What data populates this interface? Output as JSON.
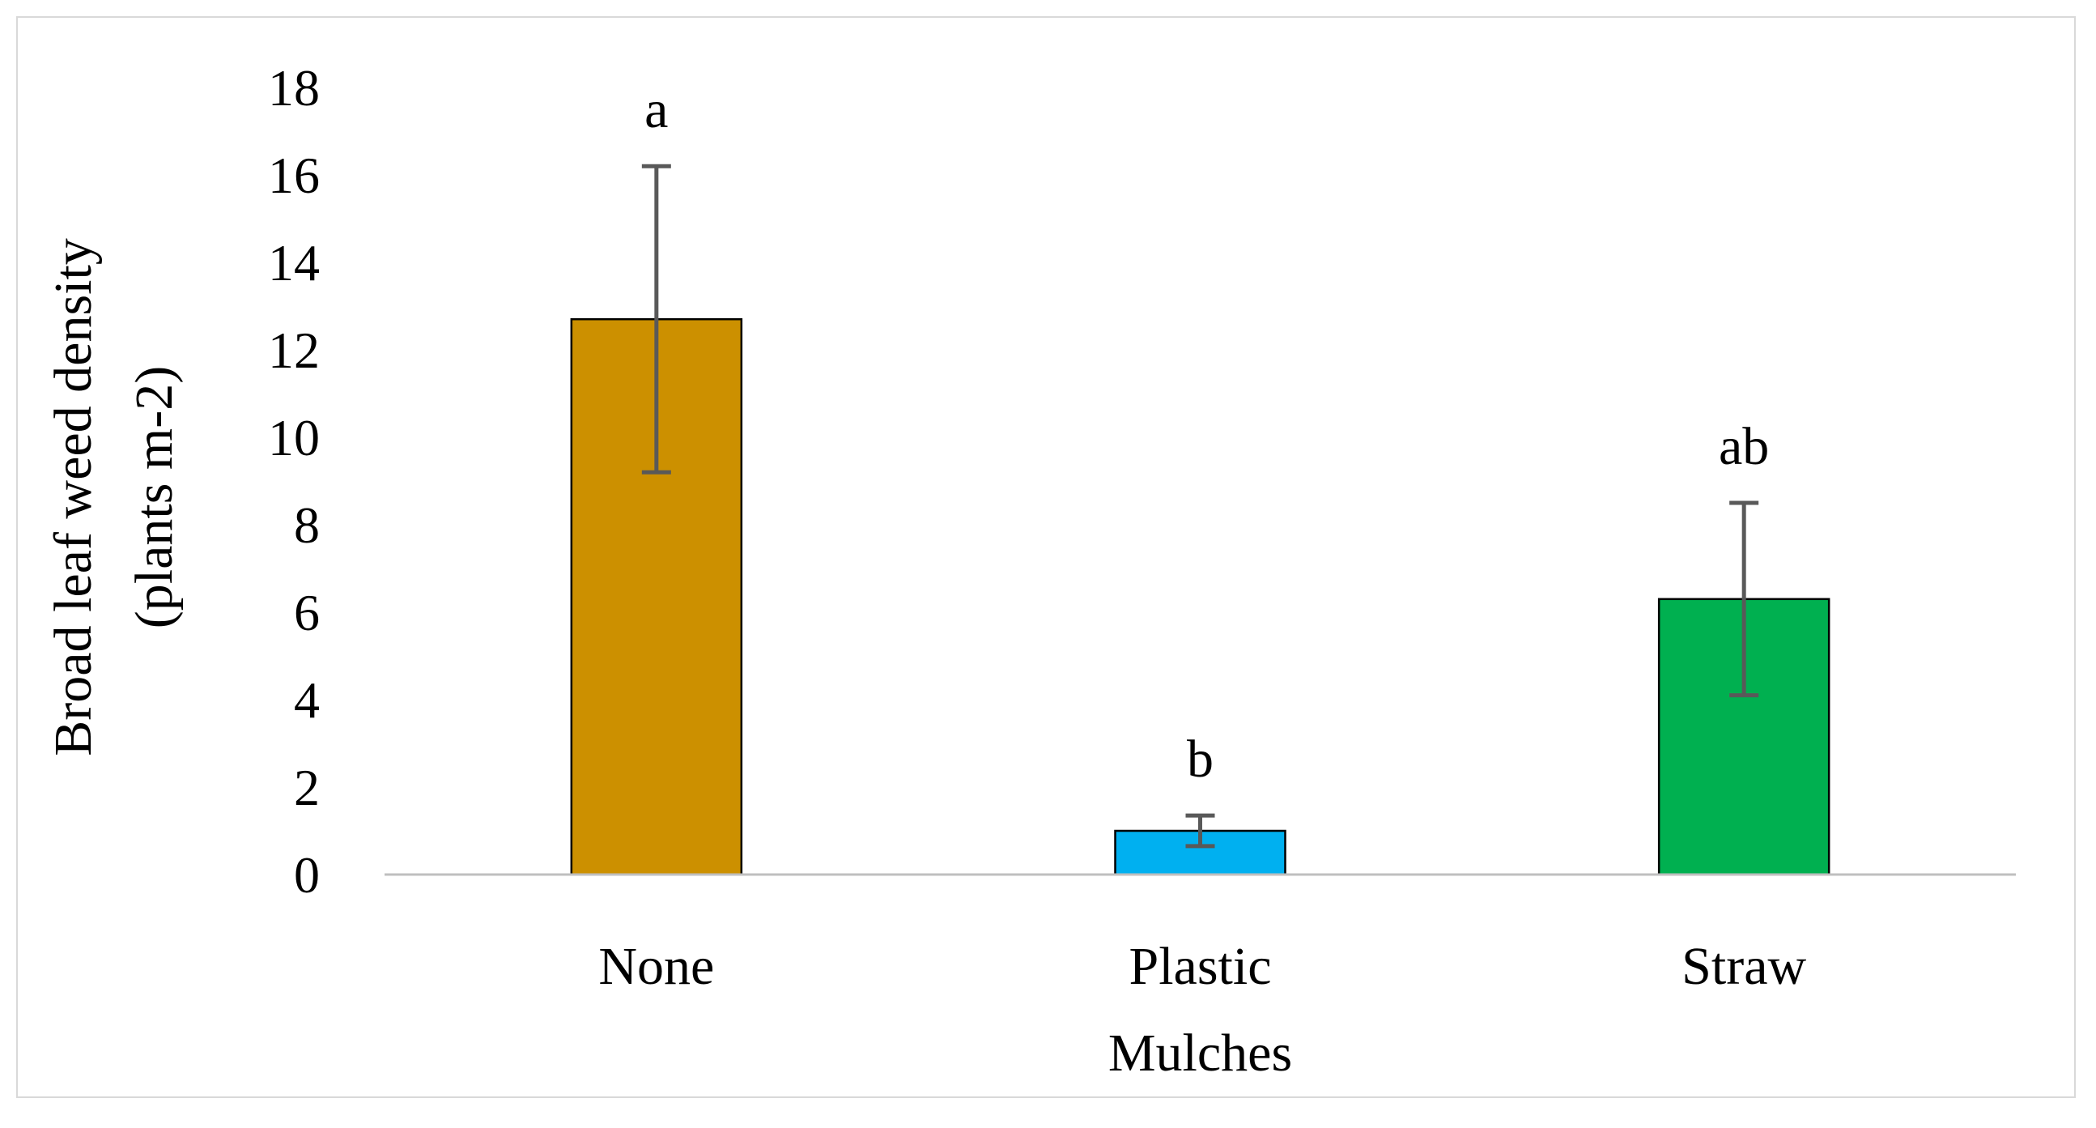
{
  "chart_data": {
    "type": "bar",
    "title": "",
    "xlabel": "Mulches",
    "ylabel_lines": [
      "Broad leaf weed density",
      "(plants m-2)"
    ],
    "categories": [
      "None",
      "Plastic",
      "Straw"
    ],
    "values": [
      12.7,
      1.0,
      6.3
    ],
    "error_minus": [
      3.5,
      0.35,
      2.2
    ],
    "error_plus": [
      3.5,
      0.35,
      2.2
    ],
    "significance_letters": [
      "a",
      "b",
      "ab"
    ],
    "colors": [
      "#CC9000",
      "#00B0F0",
      "#00B050"
    ],
    "ylim": [
      0,
      18
    ],
    "yticks": [
      0,
      2,
      4,
      6,
      8,
      10,
      12,
      14,
      16,
      18
    ],
    "grid": false,
    "legend": "none"
  }
}
